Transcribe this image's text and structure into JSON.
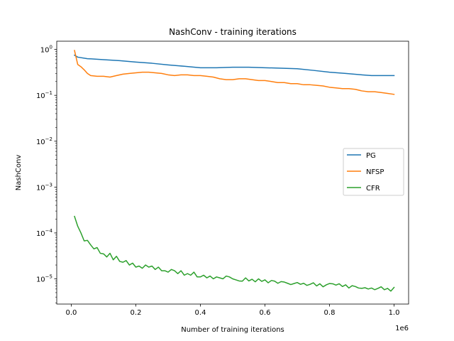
{
  "chart_data": {
    "type": "line",
    "title": "NashConv - training iterations",
    "xlabel": "Number of training iterations",
    "ylabel": "NashConv",
    "x_offset_label": "1e6",
    "yscale": "log",
    "xlim": [
      -0.045,
      1.045
    ],
    "ylim_log10": [
      -5.55,
      0.18
    ],
    "x_ticks": [
      {
        "value": 0.0,
        "label": "0.0"
      },
      {
        "value": 0.2,
        "label": "0.2"
      },
      {
        "value": 0.4,
        "label": "0.4"
      },
      {
        "value": 0.6,
        "label": "0.6"
      },
      {
        "value": 0.8,
        "label": "0.8"
      },
      {
        "value": 1.0,
        "label": "1.0"
      }
    ],
    "y_ticks": [
      {
        "exp": 0,
        "base": "10",
        "sup": "0"
      },
      {
        "exp": -1,
        "base": "10",
        "sup": "−1"
      },
      {
        "exp": -2,
        "base": "10",
        "sup": "−2"
      },
      {
        "exp": -3,
        "base": "10",
        "sup": "−3"
      },
      {
        "exp": -4,
        "base": "10",
        "sup": "−4"
      },
      {
        "exp": -5,
        "base": "10",
        "sup": "−5"
      }
    ],
    "legend_position": "center-right",
    "series": [
      {
        "name": "PG",
        "color": "#1f77b4",
        "x": [
          0.01,
          0.02,
          0.05,
          0.1,
          0.15,
          0.2,
          0.25,
          0.3,
          0.35,
          0.4,
          0.45,
          0.5,
          0.55,
          0.6,
          0.65,
          0.7,
          0.75,
          0.8,
          0.85,
          0.9,
          0.93,
          0.95,
          1.0
        ],
        "y": [
          0.75,
          0.68,
          0.63,
          0.6,
          0.57,
          0.53,
          0.5,
          0.46,
          0.43,
          0.4,
          0.4,
          0.41,
          0.41,
          0.4,
          0.39,
          0.38,
          0.35,
          0.32,
          0.3,
          0.28,
          0.27,
          0.27,
          0.27
        ]
      },
      {
        "name": "NFSP",
        "color": "#ff7f0e",
        "x": [
          0.01,
          0.02,
          0.03,
          0.04,
          0.05,
          0.06,
          0.08,
          0.1,
          0.12,
          0.14,
          0.16,
          0.18,
          0.2,
          0.22,
          0.24,
          0.26,
          0.28,
          0.3,
          0.32,
          0.34,
          0.36,
          0.38,
          0.4,
          0.42,
          0.44,
          0.46,
          0.48,
          0.5,
          0.52,
          0.54,
          0.56,
          0.58,
          0.6,
          0.62,
          0.64,
          0.66,
          0.68,
          0.7,
          0.72,
          0.74,
          0.76,
          0.78,
          0.8,
          0.82,
          0.84,
          0.86,
          0.88,
          0.9,
          0.92,
          0.94,
          0.96,
          0.98,
          1.0
        ],
        "y": [
          0.95,
          0.47,
          0.42,
          0.36,
          0.3,
          0.27,
          0.26,
          0.26,
          0.25,
          0.27,
          0.29,
          0.3,
          0.31,
          0.32,
          0.32,
          0.31,
          0.3,
          0.28,
          0.27,
          0.28,
          0.28,
          0.27,
          0.27,
          0.26,
          0.25,
          0.23,
          0.22,
          0.22,
          0.23,
          0.23,
          0.22,
          0.21,
          0.21,
          0.2,
          0.19,
          0.19,
          0.18,
          0.18,
          0.17,
          0.17,
          0.165,
          0.16,
          0.15,
          0.145,
          0.14,
          0.14,
          0.135,
          0.125,
          0.12,
          0.12,
          0.115,
          0.11,
          0.105
        ]
      },
      {
        "name": "CFR",
        "color": "#2ca02c",
        "x": [
          0.01,
          0.02,
          0.03,
          0.04,
          0.05,
          0.06,
          0.07,
          0.08,
          0.09,
          0.1,
          0.11,
          0.12,
          0.13,
          0.14,
          0.15,
          0.16,
          0.17,
          0.18,
          0.19,
          0.2,
          0.21,
          0.22,
          0.23,
          0.24,
          0.25,
          0.26,
          0.27,
          0.28,
          0.29,
          0.3,
          0.31,
          0.32,
          0.33,
          0.34,
          0.35,
          0.36,
          0.37,
          0.38,
          0.39,
          0.4,
          0.41,
          0.42,
          0.43,
          0.44,
          0.45,
          0.46,
          0.47,
          0.48,
          0.49,
          0.5,
          0.51,
          0.52,
          0.53,
          0.54,
          0.55,
          0.56,
          0.57,
          0.58,
          0.59,
          0.6,
          0.61,
          0.62,
          0.63,
          0.64,
          0.65,
          0.66,
          0.67,
          0.68,
          0.69,
          0.7,
          0.71,
          0.72,
          0.73,
          0.74,
          0.75,
          0.76,
          0.77,
          0.78,
          0.79,
          0.8,
          0.81,
          0.82,
          0.83,
          0.84,
          0.85,
          0.86,
          0.87,
          0.88,
          0.89,
          0.9,
          0.91,
          0.92,
          0.93,
          0.94,
          0.95,
          0.96,
          0.97,
          0.98,
          0.99,
          1.0
        ],
        "y": [
          0.00023,
          0.00014,
          0.0001,
          6.7e-05,
          6.9e-05,
          5.5e-05,
          4.5e-05,
          4.8e-05,
          3.6e-05,
          3.5e-05,
          3e-05,
          3.6e-05,
          2.6e-05,
          3.1e-05,
          2.4e-05,
          2.3e-05,
          2.5e-05,
          2e-05,
          2.2e-05,
          1.8e-05,
          1.9e-05,
          1.7e-05,
          2e-05,
          1.8e-05,
          1.9e-05,
          1.6e-05,
          1.8e-05,
          1.5e-05,
          1.5e-05,
          1.4e-05,
          1.6e-05,
          1.5e-05,
          1.3e-05,
          1.5e-05,
          1.2e-05,
          1.3e-05,
          1.2e-05,
          1.4e-05,
          1.1e-05,
          1.1e-05,
          1.2e-05,
          1.05e-05,
          1.15e-05,
          1e-05,
          1.1e-05,
          1.05e-05,
          1e-05,
          1.15e-05,
          1.1e-05,
          1e-05,
          9.5e-06,
          9e-06,
          8.9e-06,
          1.05e-05,
          9e-06,
          9.8e-06,
          8.6e-06,
          1e-05,
          8.8e-06,
          9.5e-06,
          8.2e-06,
          9.2e-06,
          8.9e-06,
          8e-06,
          8.7e-06,
          8.5e-06,
          8e-06,
          7.5e-06,
          7.9e-06,
          8.3e-06,
          7.6e-06,
          8e-06,
          7.2e-06,
          7.6e-06,
          8.2e-06,
          7e-06,
          7.8e-06,
          6.7e-06,
          7.4e-06,
          7.9e-06,
          7.8e-06,
          7.3e-06,
          7.8e-06,
          6.8e-06,
          7.4e-06,
          6.3e-06,
          7.1e-06,
          6.8e-06,
          6.3e-06,
          6.2e-06,
          6.4e-06,
          6e-06,
          6.3e-06,
          5.8e-06,
          6.2e-06,
          6.7e-06,
          5.8e-06,
          6.2e-06,
          5.4e-06,
          6.5e-06
        ]
      }
    ]
  }
}
